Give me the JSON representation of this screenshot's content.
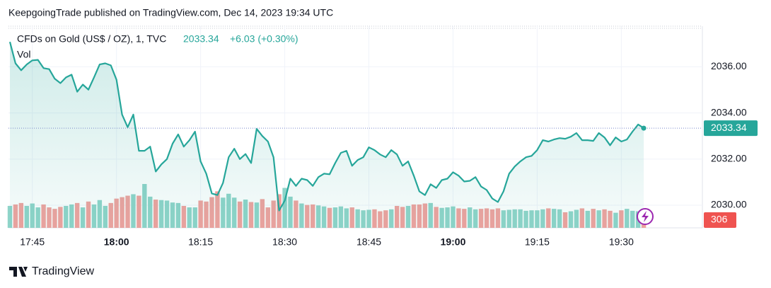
{
  "header": "KeepgoingTrade published on TradingView.com, Dec 14, 2023 19:34 UTC",
  "footer": "TradingView",
  "chart_data": {
    "type": "line",
    "symbol": "CFDs on Gold (US$ / OZ), 1, TVC",
    "change": "+6.03 (+0.30%)",
    "volume_label": "Vol",
    "categories": [
      null,
      null,
      null,
      null,
      "17:45",
      null,
      null,
      null,
      null,
      null,
      null,
      null,
      null,
      null,
      null,
      null,
      null,
      null,
      null,
      "18:00",
      null,
      null,
      null,
      null,
      null,
      null,
      null,
      null,
      null,
      null,
      null,
      null,
      null,
      null,
      "18:15",
      null,
      null,
      null,
      null,
      null,
      null,
      null,
      null,
      null,
      null,
      null,
      null,
      null,
      null,
      "18:30",
      null,
      null,
      null,
      null,
      null,
      null,
      null,
      null,
      null,
      null,
      null,
      null,
      null,
      null,
      "18:45",
      null,
      null,
      null,
      null,
      null,
      null,
      null,
      null,
      null,
      null,
      null,
      null,
      null,
      null,
      "19:00",
      null,
      null,
      null,
      null,
      null,
      null,
      null,
      null,
      null,
      null,
      null,
      null,
      null,
      null,
      "19:15",
      null,
      null,
      null,
      null,
      null,
      null,
      null,
      null,
      null,
      null,
      null,
      null,
      null,
      null,
      "19:30",
      null,
      null,
      null,
      null
    ],
    "series": [
      {
        "name": "Price",
        "color": "#26a69a",
        "values": [
          2037.08,
          2036.15,
          2035.85,
          2036.1,
          2036.28,
          2036.3,
          2035.94,
          2035.9,
          2035.48,
          2035.29,
          2035.54,
          2035.66,
          2034.92,
          2035.23,
          2035.01,
          2035.54,
          2036.1,
          2036.15,
          2036.06,
          2035.44,
          2033.93,
          2033.38,
          2033.93,
          2032.36,
          2032.36,
          2032.54,
          2031.46,
          2031.77,
          2032.0,
          2032.67,
          2033.07,
          2032.54,
          2032.82,
          2033.19,
          2031.9,
          2031.37,
          2030.51,
          2030.44,
          2030.97,
          2032.08,
          2032.45,
          2032.0,
          2032.22,
          2031.83,
          2033.31,
          2033.0,
          2032.76,
          2032.08,
          2029.77,
          2030.2,
          2031.15,
          2030.84,
          2031.15,
          2031.09,
          2030.84,
          2031.22,
          2031.37,
          2031.34,
          2031.83,
          2032.27,
          2032.36,
          2031.71,
          2031.96,
          2032.08,
          2032.51,
          2032.39,
          2032.2,
          2032.08,
          2032.39,
          2032.2,
          2031.71,
          2031.9,
          2031.28,
          2030.6,
          2030.44,
          2030.91,
          2030.75,
          2031.09,
          2031.15,
          2031.43,
          2031.28,
          2031.03,
          2031.06,
          2031.22,
          2030.81,
          2030.66,
          2030.29,
          2030.14,
          2030.6,
          2031.37,
          2031.68,
          2031.9,
          2032.08,
          2032.14,
          2032.39,
          2032.82,
          2032.76,
          2032.85,
          2032.91,
          2032.88,
          2032.97,
          2033.13,
          2032.82,
          2032.82,
          2032.79,
          2033.13,
          2032.94,
          2032.6,
          2032.94,
          2032.76,
          2032.85,
          2033.19,
          2033.5,
          2033.34
        ]
      },
      {
        "name": "Vol",
        "up_color": "#8fd4c9",
        "down_color": "#f0a29e",
        "values": [
          450,
          480,
          510,
          450,
          500,
          420,
          480,
          420,
          390,
          430,
          450,
          480,
          510,
          420,
          540,
          480,
          570,
          450,
          510,
          600,
          630,
          660,
          690,
          660,
          900,
          640,
          580,
          570,
          560,
          520,
          510,
          450,
          420,
          420,
          560,
          540,
          630,
          750,
          620,
          700,
          620,
          540,
          580,
          530,
          520,
          590,
          420,
          560,
          690,
          820,
          640,
          560,
          500,
          470,
          480,
          460,
          440,
          410,
          420,
          440,
          400,
          420,
          380,
          360,
          370,
          380,
          340,
          360,
          380,
          450,
          430,
          450,
          480,
          480,
          500,
          510,
          430,
          410,
          420,
          440,
          400,
          390,
          420,
          380,
          390,
          400,
          380,
          400,
          360,
          370,
          380,
          380,
          350,
          360,
          360,
          380,
          400,
          390,
          380,
          320,
          340,
          370,
          400,
          350,
          390,
          360,
          380,
          350,
          310,
          360,
          390,
          350,
          340,
          306
        ]
      }
    ],
    "ylim": [
      2029.02,
      2037.76
    ],
    "yticks": [
      {
        "value": 2030,
        "label": "2030.00"
      },
      {
        "value": 2032,
        "label": "2032.00"
      },
      {
        "value": 2034,
        "label": "2034.00"
      },
      {
        "value": 2036,
        "label": "2036.00"
      }
    ],
    "grid": true,
    "volume_tag_color": "#ef5350"
  }
}
